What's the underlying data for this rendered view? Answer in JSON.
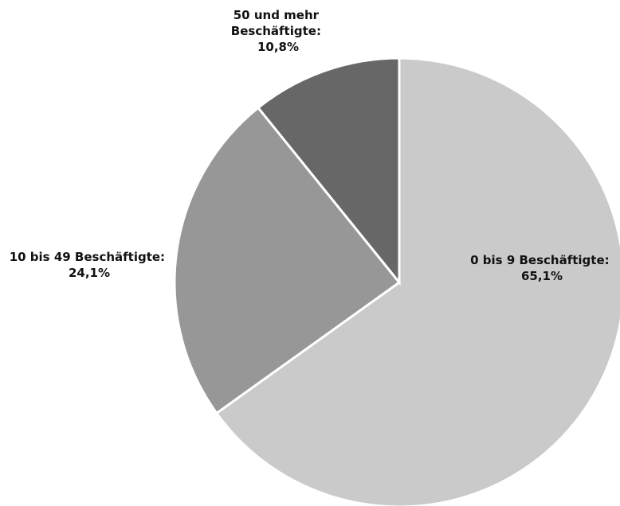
{
  "chart_data": {
    "type": "pie",
    "start_angle_deg": 0,
    "direction": "clockwise",
    "slices": [
      {
        "category": "0 bis 9 Beschäftigte",
        "value": 65.1,
        "label_lines": [
          "0 bis 9 Beschäftigte:",
          "65,1%"
        ],
        "color": "#cacaca"
      },
      {
        "category": "10 bis 49 Beschäftigte",
        "value": 24.1,
        "label_lines": [
          "10 bis 49 Beschäftigte:",
          "24,1%"
        ],
        "color": "#979797"
      },
      {
        "category": "50 und mehr Beschäftigte",
        "value": 10.8,
        "label_lines": [
          "50 und mehr",
          "Beschäftigte:",
          "10,8%"
        ],
        "color": "#676767"
      }
    ]
  }
}
